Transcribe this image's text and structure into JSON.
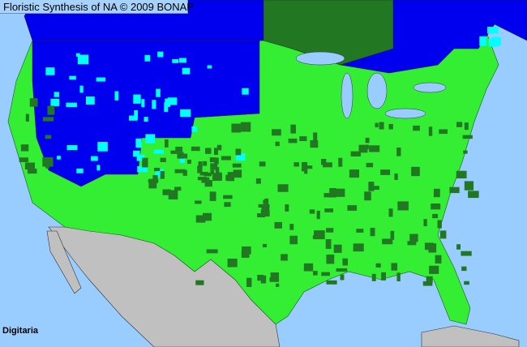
{
  "header": {
    "title": "Floristic Synthesis of NA © 2009 BONAP"
  },
  "map": {
    "taxon": "Digitaria",
    "colors": {
      "ocean": "#99ccff",
      "native_present": "#33ee33",
      "dense_present": "#227722",
      "absent_state": "#0000ee",
      "absent_county": "#00ffff",
      "outside_area": "#c0c0c0"
    }
  }
}
